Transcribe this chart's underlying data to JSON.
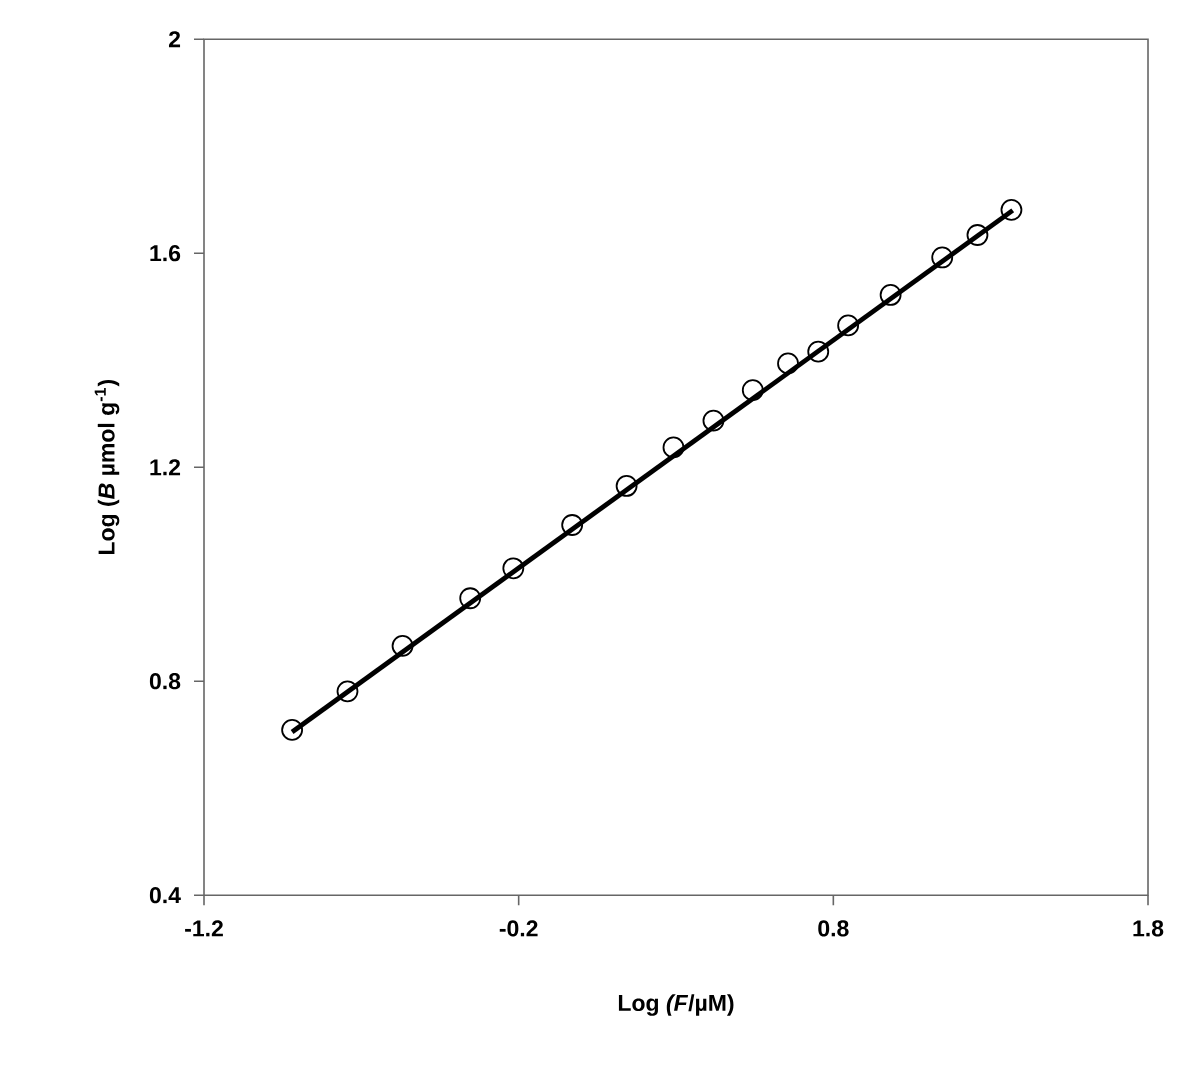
{
  "chart_data": {
    "type": "scatter",
    "xlabel": "Log *(F*/µM)",
    "ylabel": "Log (*B* µmol g$^{-1}$)",
    "xlim": [
      -1.2,
      1.8
    ],
    "xticks": [
      -1.2,
      -0.2,
      0.8,
      1.8
    ],
    "ylim": [
      0.4,
      2
    ],
    "yticks": [
      0.4,
      0.8,
      1.2,
      1.6,
      2
    ],
    "marker": "circle",
    "grid": false,
    "series": [
      {
        "color": "#000000",
        "x": [
          -0.92,
          -0.744,
          -0.569,
          -0.354,
          -0.217,
          -0.03,
          0.143,
          0.292,
          0.419,
          0.544,
          0.656,
          0.752,
          0.847,
          0.982,
          1.146,
          1.258,
          1.366
        ],
        "values": [
          0.709,
          0.781,
          0.866,
          0.955,
          1.011,
          1.092,
          1.165,
          1.237,
          1.287,
          1.344,
          1.394,
          1.416,
          1.465,
          1.522,
          1.592,
          1.634,
          1.681
        ]
      },
      {
        "type": "line",
        "color": "#000000",
        "line_style": "solid",
        "marker": "none",
        "x": [
          -0.92,
          1.37
        ],
        "values": [
          0.705,
          1.68
        ]
      }
    ]
  }
}
